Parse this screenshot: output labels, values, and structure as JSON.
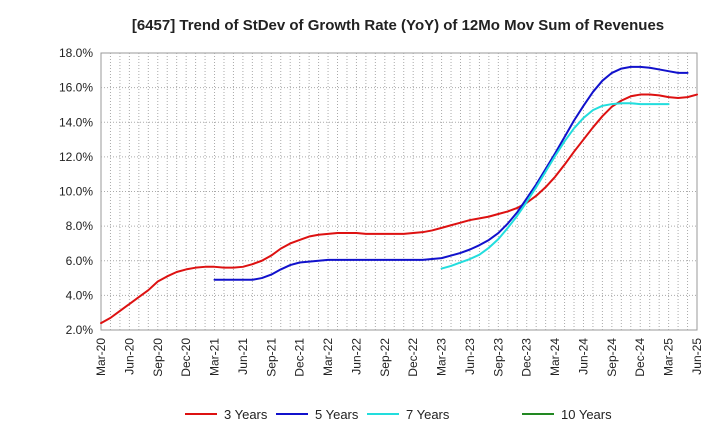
{
  "chart_data": {
    "type": "line",
    "title": "[6457]  Trend of StDev of Growth Rate (YoY) of 12Mo Mov Sum of Revenues",
    "xlabel": "",
    "ylabel": "",
    "ylim": [
      2.0,
      18.0
    ],
    "y_ticks": [
      "2.0%",
      "4.0%",
      "6.0%",
      "8.0%",
      "10.0%",
      "12.0%",
      "14.0%",
      "16.0%",
      "18.0%"
    ],
    "y_tick_values": [
      2,
      4,
      6,
      8,
      10,
      12,
      14,
      16,
      18
    ],
    "x_tick_labels": [
      "Mar-20",
      "Jun-20",
      "Sep-20",
      "Dec-20",
      "Mar-21",
      "Jun-21",
      "Sep-21",
      "Dec-21",
      "Mar-22",
      "Jun-22",
      "Sep-22",
      "Dec-22",
      "Mar-23",
      "Jun-23",
      "Sep-23",
      "Dec-23",
      "Mar-24",
      "Jun-24",
      "Sep-24",
      "Dec-24",
      "Mar-25",
      "Jun-25"
    ],
    "x_range_months": [
      0,
      63
    ],
    "grid": true,
    "legend_position": "bottom",
    "series": [
      {
        "name": "3 Years",
        "color": "#dd1111",
        "x_start_month": 0,
        "values": [
          2.4,
          2.7,
          3.1,
          3.5,
          3.9,
          4.3,
          4.8,
          5.1,
          5.35,
          5.5,
          5.6,
          5.65,
          5.65,
          5.6,
          5.6,
          5.65,
          5.8,
          6.0,
          6.3,
          6.7,
          7.0,
          7.2,
          7.4,
          7.5,
          7.55,
          7.6,
          7.6,
          7.6,
          7.55,
          7.55,
          7.55,
          7.55,
          7.55,
          7.6,
          7.65,
          7.75,
          7.9,
          8.05,
          8.2,
          8.35,
          8.45,
          8.55,
          8.7,
          8.85,
          9.05,
          9.35,
          9.75,
          10.25,
          10.85,
          11.55,
          12.3,
          13.0,
          13.7,
          14.35,
          14.9,
          15.25,
          15.5,
          15.6,
          15.6,
          15.55,
          15.45,
          15.4,
          15.45,
          15.6
        ]
      },
      {
        "name": "5 Years",
        "color": "#1111cc",
        "x_start_month": 12,
        "values": [
          4.9,
          4.9,
          4.9,
          4.9,
          4.9,
          5.0,
          5.2,
          5.5,
          5.75,
          5.9,
          5.95,
          6.0,
          6.05,
          6.05,
          6.05,
          6.05,
          6.05,
          6.05,
          6.05,
          6.05,
          6.05,
          6.05,
          6.05,
          6.1,
          6.15,
          6.3,
          6.45,
          6.65,
          6.9,
          7.2,
          7.6,
          8.15,
          8.8,
          9.6,
          10.4,
          11.3,
          12.2,
          13.15,
          14.1,
          14.95,
          15.75,
          16.4,
          16.85,
          17.1,
          17.2,
          17.2,
          17.15,
          17.05,
          16.95,
          16.85,
          16.85
        ]
      },
      {
        "name": "7 Years",
        "color": "#22dddd",
        "x_start_month": 36,
        "values": [
          5.55,
          5.7,
          5.9,
          6.1,
          6.35,
          6.75,
          7.25,
          7.9,
          8.6,
          9.4,
          10.25,
          11.15,
          12.05,
          12.9,
          13.65,
          14.25,
          14.7,
          14.95,
          15.05,
          15.1,
          15.1,
          15.05,
          15.05,
          15.05,
          15.05
        ]
      },
      {
        "name": "10 Years",
        "color": "#228822",
        "x_start_month": 0,
        "values": []
      }
    ]
  }
}
